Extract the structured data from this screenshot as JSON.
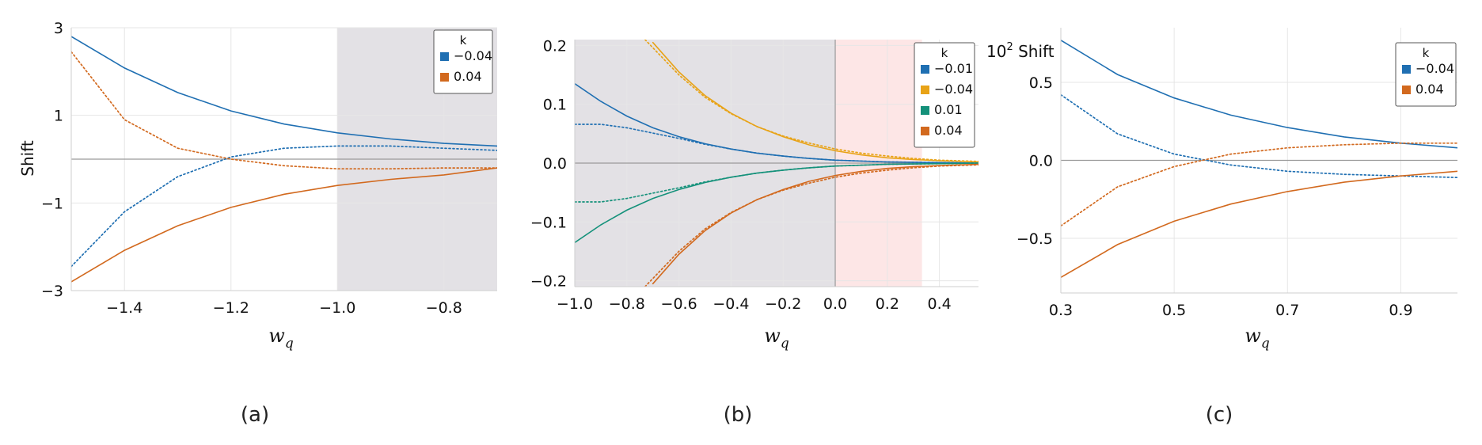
{
  "chart_data": [
    {
      "panel": "(a)",
      "type": "line",
      "xlabel": "w_q",
      "ylabel": "Shift",
      "xlim": [
        -1.5,
        -0.7
      ],
      "ylim": [
        -3,
        3
      ],
      "xticks": [
        -1.4,
        -1.2,
        -1.0,
        -0.8
      ],
      "yticks": [
        -3,
        -1,
        1,
        3
      ],
      "grid": true,
      "shaded_regions": [
        {
          "from": -1.0,
          "to": -0.7,
          "color": "#e3e1e5"
        }
      ],
      "legend": {
        "title": "k",
        "position": "top-right",
        "entries": [
          {
            "label": "−0.04",
            "color": "#1f6fb2"
          },
          {
            "label": "0.04",
            "color": "#d2691e"
          }
        ]
      },
      "series": [
        {
          "name": "−0.04",
          "style": "solid",
          "color": "#1f6fb2",
          "x": [
            -1.5,
            -1.4,
            -1.3,
            -1.2,
            -1.1,
            -1.0,
            -0.9,
            -0.8,
            -0.7
          ],
          "y": [
            2.8,
            2.08,
            1.52,
            1.1,
            0.8,
            0.6,
            0.46,
            0.36,
            0.3
          ]
        },
        {
          "name": "−0.04",
          "style": "dotted",
          "color": "#1f6fb2",
          "x": [
            -1.5,
            -1.4,
            -1.3,
            -1.2,
            -1.1,
            -1.0,
            -0.9,
            -0.8,
            -0.7
          ],
          "y": [
            -2.45,
            -1.2,
            -0.4,
            0.05,
            0.25,
            0.3,
            0.3,
            0.25,
            0.2
          ]
        },
        {
          "name": "0.04",
          "style": "dotted",
          "color": "#d2691e",
          "x": [
            -1.5,
            -1.4,
            -1.3,
            -1.2,
            -1.1,
            -1.0,
            -0.9,
            -0.8,
            -0.7
          ],
          "y": [
            2.45,
            0.9,
            0.25,
            0.0,
            -0.15,
            -0.22,
            -0.22,
            -0.2,
            -0.2
          ]
        },
        {
          "name": "0.04",
          "style": "solid",
          "color": "#d2691e",
          "x": [
            -1.5,
            -1.4,
            -1.3,
            -1.2,
            -1.1,
            -1.0,
            -0.9,
            -0.8,
            -0.7
          ],
          "y": [
            -2.8,
            -2.08,
            -1.52,
            -1.1,
            -0.8,
            -0.6,
            -0.46,
            -0.36,
            -0.2
          ]
        }
      ]
    },
    {
      "panel": "(b)",
      "type": "line",
      "xlabel": "w_q",
      "ylabel": "",
      "xlim": [
        -1.0,
        0.55
      ],
      "ylim": [
        -0.21,
        0.21
      ],
      "xticks": [
        -1.0,
        -0.8,
        -0.6,
        -0.4,
        -0.2,
        0.0,
        0.2,
        0.4
      ],
      "yticks": [
        -0.2,
        -0.1,
        0.0,
        0.1,
        0.2
      ],
      "grid": true,
      "shaded_regions": [
        {
          "from": -1.0,
          "to": 0.0,
          "color": "#e3e1e5"
        },
        {
          "from": 0.0,
          "to": 0.333,
          "color": "#fde6e6"
        }
      ],
      "vlines": [
        0.0
      ],
      "legend": {
        "title": "k",
        "position": "top-right",
        "entries": [
          {
            "label": "−0.01",
            "color": "#1f6fb2"
          },
          {
            "label": "−0.04",
            "color": "#e8a317"
          },
          {
            "label": "0.01",
            "color": "#14917a"
          },
          {
            "label": "0.04",
            "color": "#d2691e"
          }
        ]
      },
      "series": [
        {
          "name": "−0.01",
          "style": "solid",
          "color": "#1f6fb2",
          "x": [
            -1.0,
            -0.9,
            -0.8,
            -0.7,
            -0.6,
            -0.5,
            -0.4,
            -0.3,
            -0.2,
            -0.1,
            0.0,
            0.2,
            0.4,
            0.55
          ],
          "y": [
            0.135,
            0.105,
            0.08,
            0.06,
            0.045,
            0.033,
            0.024,
            0.017,
            0.012,
            0.008,
            0.005,
            0.002,
            0.001,
            0.0
          ]
        },
        {
          "name": "−0.01",
          "style": "dotted",
          "color": "#1f6fb2",
          "x": [
            -1.0,
            -0.9,
            -0.8,
            -0.7,
            -0.6,
            -0.5,
            -0.4,
            -0.3,
            -0.2,
            -0.1,
            0.0,
            0.2,
            0.4,
            0.55
          ],
          "y": [
            0.066,
            0.066,
            0.06,
            0.051,
            0.042,
            0.032,
            0.024,
            0.017,
            0.012,
            0.008,
            0.005,
            0.002,
            0.001,
            0.0
          ]
        },
        {
          "name": "−0.04",
          "style": "solid",
          "color": "#e8a317",
          "x": [
            -0.7,
            -0.6,
            -0.5,
            -0.4,
            -0.3,
            -0.2,
            -0.1,
            0.0,
            0.1,
            0.2,
            0.3,
            0.4,
            0.55
          ],
          "y": [
            0.205,
            0.155,
            0.115,
            0.085,
            0.062,
            0.045,
            0.031,
            0.021,
            0.014,
            0.009,
            0.006,
            0.004,
            0.002
          ]
        },
        {
          "name": "−0.04",
          "style": "dotted",
          "color": "#e8a317",
          "x": [
            -0.73,
            -0.6,
            -0.5,
            -0.4,
            -0.3,
            -0.2,
            -0.1,
            0.0,
            0.1,
            0.2,
            0.3,
            0.4,
            0.55
          ],
          "y": [
            0.21,
            0.15,
            0.112,
            0.084,
            0.062,
            0.046,
            0.034,
            0.024,
            0.017,
            0.012,
            0.008,
            0.005,
            0.003
          ]
        },
        {
          "name": "0.01",
          "style": "solid",
          "color": "#14917a",
          "x": [
            -1.0,
            -0.9,
            -0.8,
            -0.7,
            -0.6,
            -0.5,
            -0.4,
            -0.3,
            -0.2,
            -0.1,
            0.0,
            0.2,
            0.4,
            0.55
          ],
          "y": [
            -0.135,
            -0.105,
            -0.08,
            -0.06,
            -0.045,
            -0.033,
            -0.024,
            -0.017,
            -0.012,
            -0.008,
            -0.005,
            -0.002,
            -0.001,
            0.0
          ]
        },
        {
          "name": "0.01",
          "style": "dotted",
          "color": "#14917a",
          "x": [
            -1.0,
            -0.9,
            -0.8,
            -0.7,
            -0.6,
            -0.5,
            -0.4,
            -0.3,
            -0.2,
            -0.1,
            0.0,
            0.2,
            0.4,
            0.55
          ],
          "y": [
            -0.066,
            -0.066,
            -0.06,
            -0.051,
            -0.042,
            -0.032,
            -0.024,
            -0.017,
            -0.012,
            -0.008,
            -0.005,
            -0.002,
            -0.001,
            0.0
          ]
        },
        {
          "name": "0.04",
          "style": "solid",
          "color": "#d2691e",
          "x": [
            -0.7,
            -0.6,
            -0.5,
            -0.4,
            -0.3,
            -0.2,
            -0.1,
            0.0,
            0.1,
            0.2,
            0.3,
            0.4,
            0.55
          ],
          "y": [
            -0.205,
            -0.155,
            -0.115,
            -0.085,
            -0.062,
            -0.045,
            -0.031,
            -0.021,
            -0.014,
            -0.009,
            -0.006,
            -0.004,
            -0.002
          ]
        },
        {
          "name": "0.04",
          "style": "dotted",
          "color": "#d2691e",
          "x": [
            -0.73,
            -0.6,
            -0.5,
            -0.4,
            -0.3,
            -0.2,
            -0.1,
            0.0,
            0.1,
            0.2,
            0.3,
            0.4,
            0.55
          ],
          "y": [
            -0.21,
            -0.15,
            -0.112,
            -0.084,
            -0.062,
            -0.046,
            -0.034,
            -0.024,
            -0.017,
            -0.012,
            -0.008,
            -0.005,
            -0.003
          ]
        }
      ]
    },
    {
      "panel": "(c)",
      "type": "line",
      "xlabel": "w_q",
      "ylabel": "Shift",
      "ylabel_prefix": "10",
      "ylabel_exponent": "2",
      "xlim": [
        0.3,
        1.0
      ],
      "ylim": [
        -0.85,
        0.85
      ],
      "xticks": [
        0.3,
        0.5,
        0.7,
        0.9
      ],
      "yticks": [
        -0.5,
        0.0,
        0.5
      ],
      "grid": true,
      "legend": {
        "title": "k",
        "position": "top-right",
        "entries": [
          {
            "label": "−0.04",
            "color": "#1f6fb2"
          },
          {
            "label": "0.04",
            "color": "#d2691e"
          }
        ]
      },
      "series": [
        {
          "name": "−0.04",
          "style": "solid",
          "color": "#1f6fb2",
          "x": [
            0.3,
            0.4,
            0.5,
            0.6,
            0.7,
            0.8,
            0.9,
            1.0
          ],
          "y": [
            0.77,
            0.55,
            0.4,
            0.29,
            0.21,
            0.15,
            0.11,
            0.08
          ]
        },
        {
          "name": "−0.04",
          "style": "dotted",
          "color": "#1f6fb2",
          "x": [
            0.3,
            0.4,
            0.5,
            0.6,
            0.7,
            0.8,
            0.9,
            1.0
          ],
          "y": [
            0.42,
            0.17,
            0.04,
            -0.03,
            -0.07,
            -0.09,
            -0.1,
            -0.11
          ]
        },
        {
          "name": "0.04",
          "style": "dotted",
          "color": "#d2691e",
          "x": [
            0.3,
            0.4,
            0.5,
            0.6,
            0.7,
            0.8,
            0.9,
            1.0
          ],
          "y": [
            -0.42,
            -0.17,
            -0.04,
            0.04,
            0.08,
            0.1,
            0.11,
            0.11
          ]
        },
        {
          "name": "0.04",
          "style": "solid",
          "color": "#d2691e",
          "x": [
            0.3,
            0.4,
            0.5,
            0.6,
            0.7,
            0.8,
            0.9,
            1.0
          ],
          "y": [
            -0.75,
            -0.54,
            -0.39,
            -0.28,
            -0.2,
            -0.14,
            -0.1,
            -0.07
          ]
        }
      ]
    }
  ],
  "captions": [
    "(a)",
    "(b)",
    "(c)"
  ]
}
